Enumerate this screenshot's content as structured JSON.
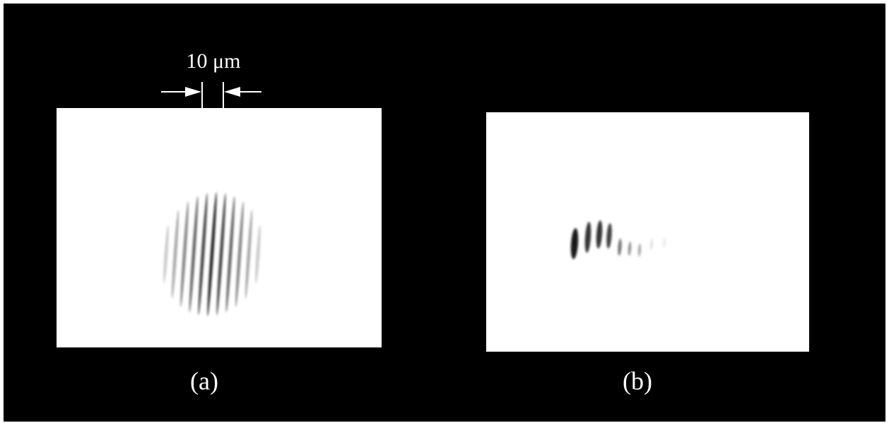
{
  "scale_bar": {
    "label": "10 μm"
  },
  "panels": [
    {
      "label": "(a)"
    },
    {
      "label": "(b)"
    }
  ]
}
